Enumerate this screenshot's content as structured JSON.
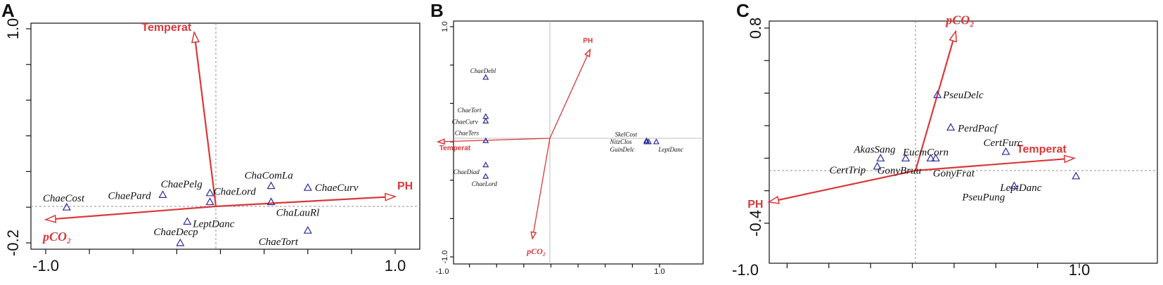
{
  "chart_data": [
    {
      "panel": "A",
      "type": "scatter",
      "xlim": [
        -1.0,
        1.0
      ],
      "ylim": [
        -0.2,
        1.0
      ],
      "x_tick_labels": [
        "-1.0",
        "1.0"
      ],
      "y_tick_labels": [
        "-0.2",
        "1.0"
      ],
      "vectors": [
        {
          "label": "Temperat",
          "x": -0.15,
          "y": 0.98
        },
        {
          "label": "PH",
          "x": 1.0,
          "y": 0.06
        },
        {
          "label": "pCO₂",
          "x": -1.0,
          "y": -0.07
        }
      ],
      "species": [
        {
          "label": "ChaeCost",
          "x": -0.88,
          "y": 0.0
        },
        {
          "label": "ChaePard",
          "x": -0.33,
          "y": 0.07
        },
        {
          "label": "ChaePelg",
          "x": -0.06,
          "y": 0.08
        },
        {
          "label": "ChaeLord",
          "x": -0.06,
          "y": 0.03
        },
        {
          "label": "ChaComLa",
          "x": 0.29,
          "y": 0.12
        },
        {
          "label": "ChaeCurv",
          "x": 0.5,
          "y": 0.11
        },
        {
          "label": "ChaLauRl",
          "x": 0.29,
          "y": 0.03
        },
        {
          "label": "LeptDanc",
          "x": -0.19,
          "y": -0.08
        },
        {
          "label": "ChaeDecp",
          "x": -0.23,
          "y": -0.2
        },
        {
          "label": "ChaeTort",
          "x": 0.5,
          "y": -0.13
        }
      ]
    },
    {
      "panel": "B",
      "type": "scatter",
      "xlim": [
        -1.0,
        1.0
      ],
      "ylim": [
        -1.0,
        1.0
      ],
      "x_tick_labels": [
        "-1.0",
        "1.0"
      ],
      "y_tick_labels": [
        "-1.0",
        "1.0"
      ],
      "vectors": [
        {
          "label": "PH",
          "x": 0.36,
          "y": 0.8
        },
        {
          "label": "Temperat",
          "x": -1.04,
          "y": 0.0
        },
        {
          "label": "pCO₂",
          "x": -0.17,
          "y": -0.84
        }
      ],
      "species": [
        {
          "label": "ChaeDebl",
          "x": -0.6,
          "y": 0.56
        },
        {
          "label": "ChaeTort",
          "x": -0.6,
          "y": 0.22
        },
        {
          "label": "ChaeCurv",
          "x": -0.6,
          "y": 0.18
        },
        {
          "label": "ChaeTers",
          "x": -0.6,
          "y": 0.01
        },
        {
          "label": "ChaeDiad",
          "x": -0.6,
          "y": -0.2
        },
        {
          "label": "ChaeLord",
          "x": -0.6,
          "y": -0.3
        },
        {
          "label": "SkelCost",
          "x": 0.88,
          "y": 0.01
        },
        {
          "label": "NitzClos",
          "x": 0.88,
          "y": 0.0
        },
        {
          "label": "GuinDelc",
          "x": 0.9,
          "y": 0.0
        },
        {
          "label": "LeptDanc",
          "x": 0.97,
          "y": 0.0
        }
      ]
    },
    {
      "panel": "C",
      "type": "scatter",
      "xlim": [
        -1.0,
        1.0
      ],
      "ylim": [
        -0.4,
        0.8
      ],
      "x_tick_labels": [
        "-1.0",
        "1.0"
      ],
      "y_tick_labels": [
        "-0.4",
        "0.8"
      ],
      "vectors": [
        {
          "label": "pCO₂",
          "x": 0.26,
          "y": 0.78
        },
        {
          "label": "Temperat",
          "x": 0.97,
          "y": 0.0
        },
        {
          "label": "PH",
          "x": -0.86,
          "y": -0.27
        }
      ],
      "species": [
        {
          "label": "PseuDelc",
          "x": 0.15,
          "y": 0.39
        },
        {
          "label": "PerdPacf",
          "x": 0.23,
          "y": 0.19
        },
        {
          "label": "CertFurc",
          "x": 0.56,
          "y": 0.04
        },
        {
          "label": "AkasSang",
          "x": -0.19,
          "y": 0.0
        },
        {
          "label": "EucmCorn",
          "x": -0.04,
          "y": 0.0
        },
        {
          "label": "GonyBruu",
          "x": 0.11,
          "y": 0.0
        },
        {
          "label": "GonyFrat",
          "x": 0.14,
          "y": 0.0
        },
        {
          "label": "CertTrip",
          "x": -0.21,
          "y": -0.05
        },
        {
          "label": "LeptDanc",
          "x": 0.98,
          "y": -0.11
        },
        {
          "label": "PseuPung",
          "x": 0.61,
          "y": -0.17
        }
      ]
    }
  ]
}
